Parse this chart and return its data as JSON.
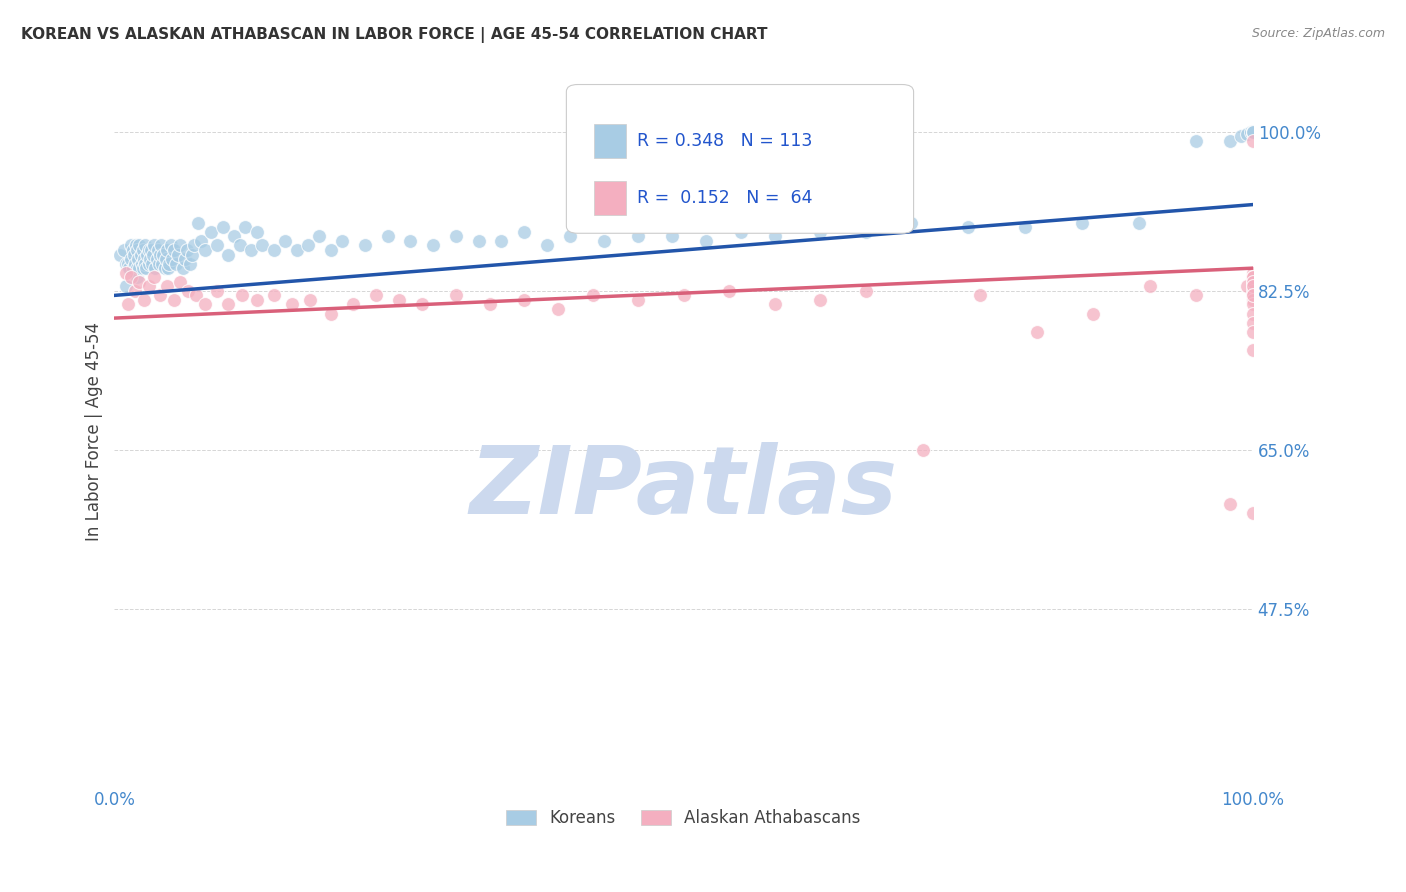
{
  "title": "KOREAN VS ALASKAN ATHABASCAN IN LABOR FORCE | AGE 45-54 CORRELATION CHART",
  "source": "Source: ZipAtlas.com",
  "ylabel": "In Labor Force | Age 45-54",
  "xlim": [
    0.0,
    1.0
  ],
  "ylim": [
    0.28,
    1.06
  ],
  "ytick_positions": [
    0.475,
    0.65,
    0.825,
    1.0
  ],
  "yticklabels": [
    "47.5%",
    "65.0%",
    "82.5%",
    "100.0%"
  ],
  "legend_label1": "Koreans",
  "legend_label2": "Alaskan Athabascans",
  "stat1_r": "R = 0.348",
  "stat1_n": "N = 113",
  "stat2_r": "R =  0.152",
  "stat2_n": "N =  64",
  "blue_color": "#a8cce4",
  "blue_line_color": "#2255aa",
  "pink_color": "#f4afc0",
  "pink_line_color": "#d9607a",
  "stat_color": "#2255cc",
  "background_color": "#ffffff",
  "grid_color": "#cccccc",
  "watermark": "ZIPatlas",
  "watermark_color": "#ccd9ee",
  "title_color": "#333333",
  "axis_label_color": "#444444",
  "tick_label_color": "#4488cc",
  "korean_x": [
    0.005,
    0.008,
    0.01,
    0.01,
    0.012,
    0.013,
    0.015,
    0.015,
    0.016,
    0.016,
    0.017,
    0.018,
    0.019,
    0.02,
    0.02,
    0.02,
    0.021,
    0.022,
    0.022,
    0.023,
    0.024,
    0.025,
    0.025,
    0.026,
    0.027,
    0.027,
    0.028,
    0.029,
    0.03,
    0.03,
    0.031,
    0.032,
    0.033,
    0.034,
    0.035,
    0.036,
    0.037,
    0.038,
    0.039,
    0.04,
    0.041,
    0.042,
    0.043,
    0.044,
    0.045,
    0.046,
    0.047,
    0.048,
    0.05,
    0.051,
    0.052,
    0.054,
    0.056,
    0.058,
    0.06,
    0.062,
    0.064,
    0.066,
    0.068,
    0.07,
    0.073,
    0.076,
    0.08,
    0.085,
    0.09,
    0.095,
    0.1,
    0.105,
    0.11,
    0.115,
    0.12,
    0.125,
    0.13,
    0.14,
    0.15,
    0.16,
    0.17,
    0.18,
    0.19,
    0.2,
    0.22,
    0.24,
    0.26,
    0.28,
    0.3,
    0.32,
    0.34,
    0.36,
    0.38,
    0.4,
    0.43,
    0.46,
    0.49,
    0.52,
    0.55,
    0.58,
    0.62,
    0.66,
    0.7,
    0.75,
    0.8,
    0.85,
    0.9,
    0.95,
    0.98,
    0.99,
    0.995,
    0.998,
    1.0,
    1.0,
    1.0,
    1.0,
    1.0
  ],
  "korean_y": [
    0.865,
    0.87,
    0.855,
    0.83,
    0.855,
    0.85,
    0.875,
    0.86,
    0.87,
    0.85,
    0.865,
    0.855,
    0.875,
    0.87,
    0.85,
    0.84,
    0.86,
    0.875,
    0.85,
    0.865,
    0.855,
    0.87,
    0.85,
    0.86,
    0.875,
    0.855,
    0.85,
    0.865,
    0.87,
    0.855,
    0.86,
    0.87,
    0.855,
    0.865,
    0.875,
    0.85,
    0.86,
    0.87,
    0.855,
    0.865,
    0.875,
    0.855,
    0.865,
    0.85,
    0.86,
    0.87,
    0.85,
    0.855,
    0.875,
    0.86,
    0.87,
    0.855,
    0.865,
    0.875,
    0.85,
    0.86,
    0.87,
    0.855,
    0.865,
    0.875,
    0.9,
    0.88,
    0.87,
    0.89,
    0.875,
    0.895,
    0.865,
    0.885,
    0.875,
    0.895,
    0.87,
    0.89,
    0.875,
    0.87,
    0.88,
    0.87,
    0.875,
    0.885,
    0.87,
    0.88,
    0.875,
    0.885,
    0.88,
    0.875,
    0.885,
    0.88,
    0.88,
    0.89,
    0.875,
    0.885,
    0.88,
    0.885,
    0.885,
    0.88,
    0.89,
    0.885,
    0.89,
    0.89,
    0.9,
    0.895,
    0.895,
    0.9,
    0.9,
    0.99,
    0.99,
    0.995,
    0.998,
    1.0,
    1.0,
    1.0,
    1.0,
    1.0,
    1.0
  ],
  "athabascan_x": [
    0.01,
    0.012,
    0.015,
    0.018,
    0.022,
    0.026,
    0.03,
    0.035,
    0.04,
    0.046,
    0.052,
    0.058,
    0.065,
    0.072,
    0.08,
    0.09,
    0.1,
    0.112,
    0.125,
    0.14,
    0.156,
    0.172,
    0.19,
    0.21,
    0.23,
    0.25,
    0.27,
    0.3,
    0.33,
    0.36,
    0.39,
    0.42,
    0.46,
    0.5,
    0.54,
    0.58,
    0.62,
    0.66,
    0.71,
    0.76,
    0.81,
    0.86,
    0.91,
    0.95,
    0.98,
    0.995,
    1.0,
    1.0,
    1.0,
    1.0,
    1.0,
    1.0,
    1.0,
    1.0,
    1.0,
    1.0,
    1.0,
    1.0,
    1.0,
    1.0,
    1.0,
    1.0,
    1.0,
    1.0
  ],
  "athabascan_y": [
    0.845,
    0.81,
    0.84,
    0.825,
    0.835,
    0.815,
    0.83,
    0.84,
    0.82,
    0.83,
    0.815,
    0.835,
    0.825,
    0.82,
    0.81,
    0.825,
    0.81,
    0.82,
    0.815,
    0.82,
    0.81,
    0.815,
    0.8,
    0.81,
    0.82,
    0.815,
    0.81,
    0.82,
    0.81,
    0.815,
    0.805,
    0.82,
    0.815,
    0.82,
    0.825,
    0.81,
    0.815,
    0.825,
    0.65,
    0.82,
    0.78,
    0.8,
    0.83,
    0.82,
    0.59,
    0.83,
    0.845,
    0.84,
    0.835,
    0.83,
    0.825,
    0.82,
    0.815,
    0.81,
    0.8,
    0.79,
    0.78,
    0.76,
    0.58,
    0.84,
    0.835,
    0.83,
    0.82,
    0.99
  ],
  "blue_line_start_y": 0.82,
  "blue_line_end_y": 0.92,
  "pink_line_start_y": 0.795,
  "pink_line_end_y": 0.85
}
